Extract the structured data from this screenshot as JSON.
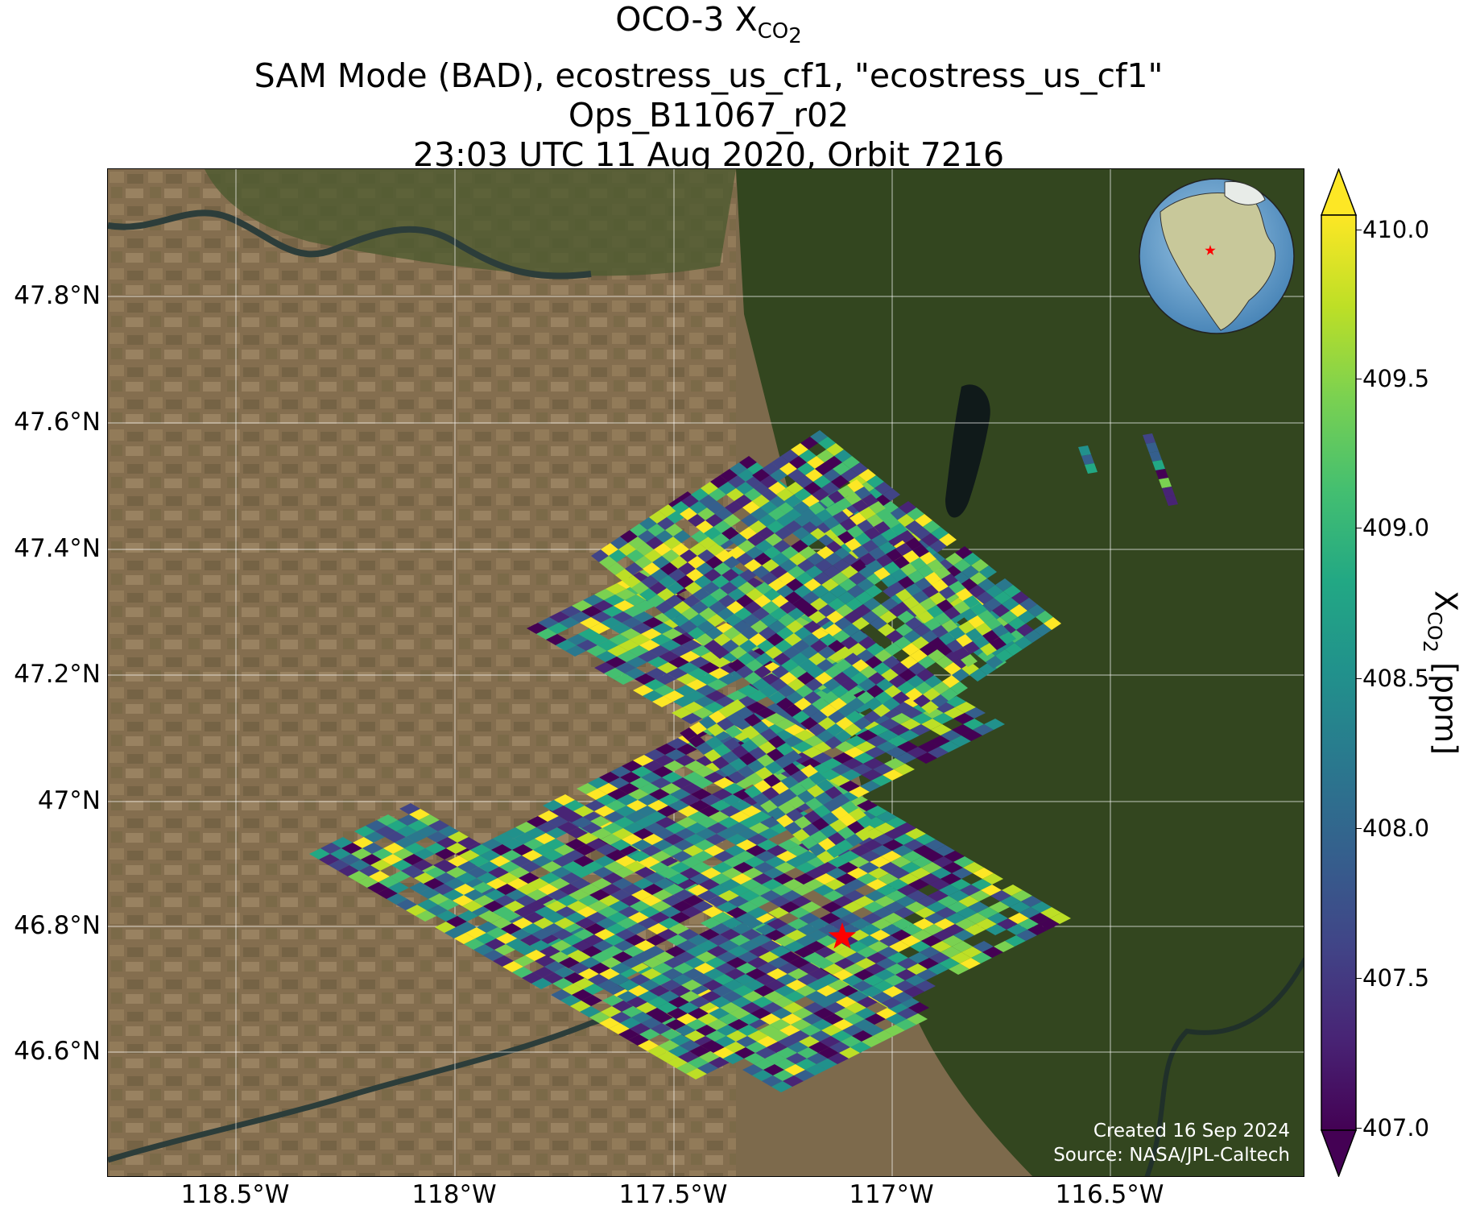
{
  "title": {
    "line1_prefix": "OCO-3 X",
    "line1_subscript": "CO",
    "line1_subscript_2": "2",
    "line2": "SAM Mode (BAD), ecostress_us_cf1, \"ecostress_us_cf1\"",
    "line3": "Ops_B11067_r02",
    "line4": "23:03 UTC 11 Aug 2020, Orbit 7216"
  },
  "axes": {
    "lat_ticks": [
      "47.8°N",
      "47.6°N",
      "47.4°N",
      "47.2°N",
      "47°N",
      "46.8°N",
      "46.6°N"
    ],
    "lon_ticks": [
      "118.5°W",
      "118°W",
      "117.5°W",
      "117°W",
      "116.5°W"
    ]
  },
  "colorbar": {
    "label_prefix": "X",
    "label_sub": "CO",
    "label_sub2": "2",
    "label_suffix": " [ppm]",
    "ticks": [
      "410.0",
      "409.5",
      "409.0",
      "408.5",
      "408.0",
      "407.5",
      "407.0"
    ],
    "colormap": "viridis",
    "range": [
      407.0,
      410.0
    ],
    "extend": "both"
  },
  "credits": {
    "created": "Created 16 Sep 2024",
    "source": "Source: NASA/JPL-Caltech"
  },
  "map": {
    "background": "satellite imagery",
    "gridlines": true,
    "site_marker": "red star",
    "inset": "globe locator with red star marking site",
    "lat_range": [
      46.41,
      48.0
    ],
    "lon_range": [
      -118.8,
      -116.1
    ]
  },
  "colors": {
    "site_marker": "#ff0000",
    "viridis_low": "#440154",
    "viridis_high": "#fde725"
  }
}
